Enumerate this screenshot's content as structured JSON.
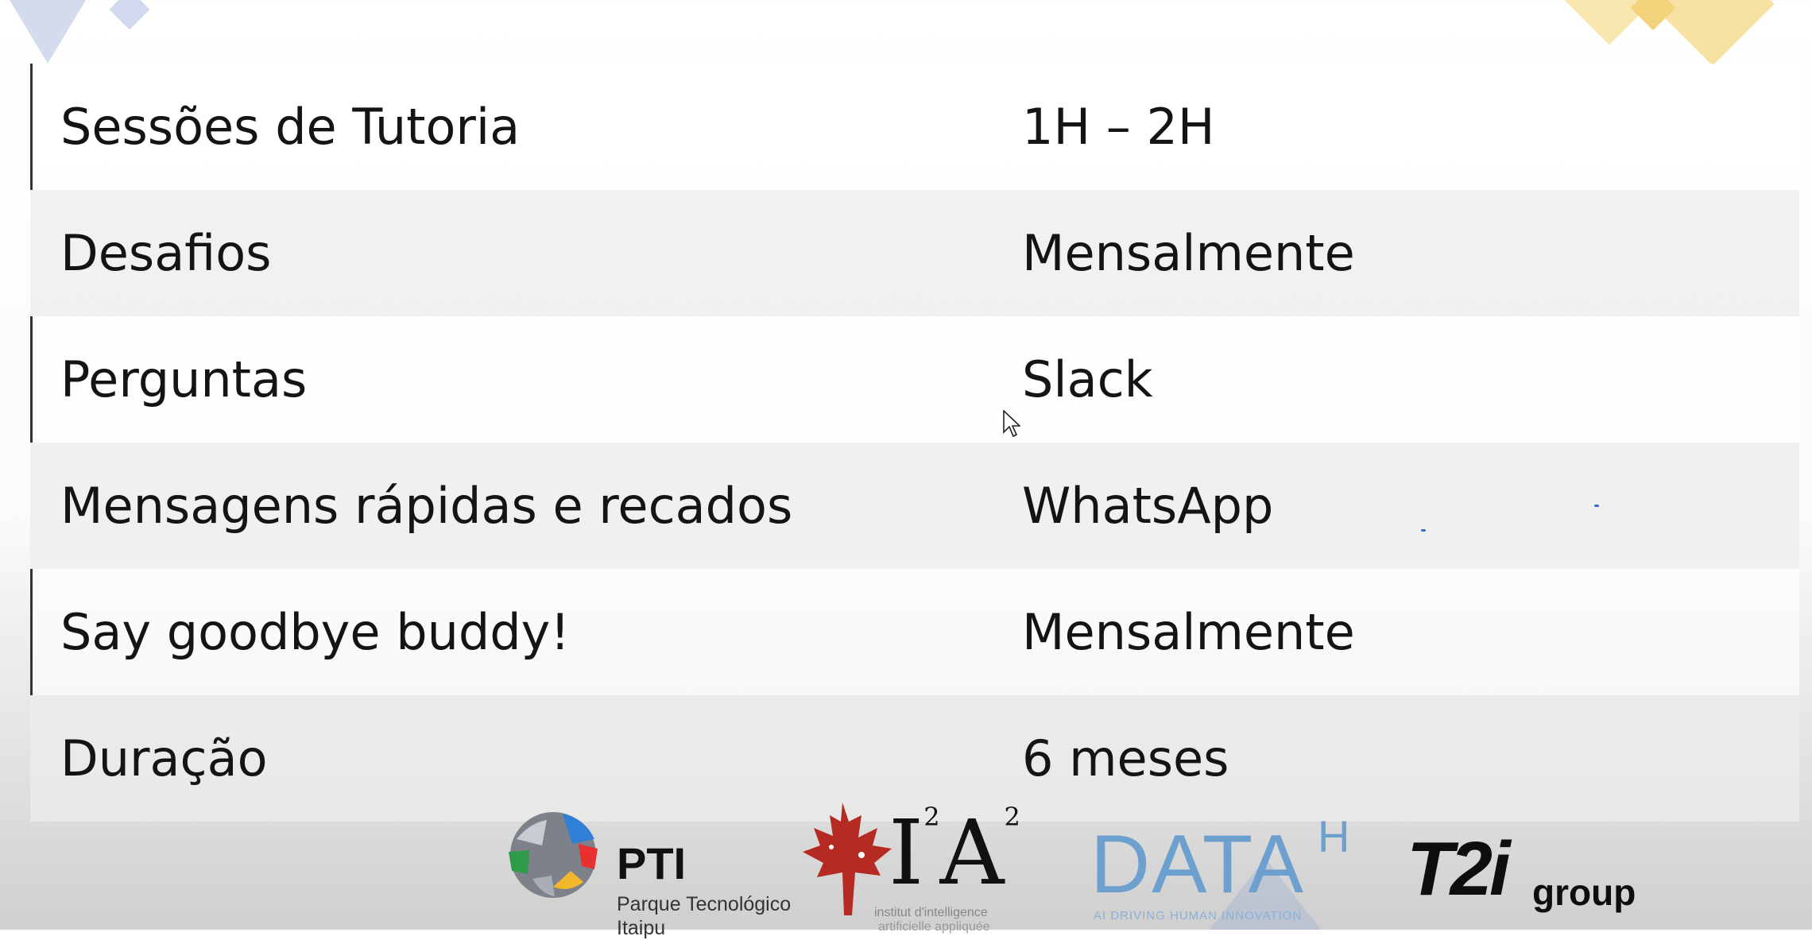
{
  "table": {
    "rows": [
      {
        "label": "Sessões de Tutoria",
        "value": "1H – 2H"
      },
      {
        "label": "Desafios",
        "value": "Mensalmente"
      },
      {
        "label": "Perguntas",
        "value": "Slack"
      },
      {
        "label": "Mensagens rápidas e recados",
        "value": "WhatsApp"
      },
      {
        "label": "Say goodbye buddy!",
        "value": "Mensalmente"
      },
      {
        "label": "Duração",
        "value": "6 meses"
      }
    ]
  },
  "logos": {
    "pti": {
      "name": "PTI",
      "line1": "Parque Tecnológico",
      "line2": "Itaipu"
    },
    "ia": {
      "mark": "I",
      "mark2": "A",
      "sup": "2",
      "sub1": "institut d'intelligence",
      "sub2": "artificielle appliquée"
    },
    "data": {
      "word": "DATA",
      "sup": "H",
      "tagline": "AI DRIVING HUMAN INNOVATION"
    },
    "t2i": {
      "mark": "T2i",
      "suffix": "group"
    }
  },
  "colors": {
    "data_blue": "#6d9fcf",
    "maple_red": "#b52a22"
  }
}
